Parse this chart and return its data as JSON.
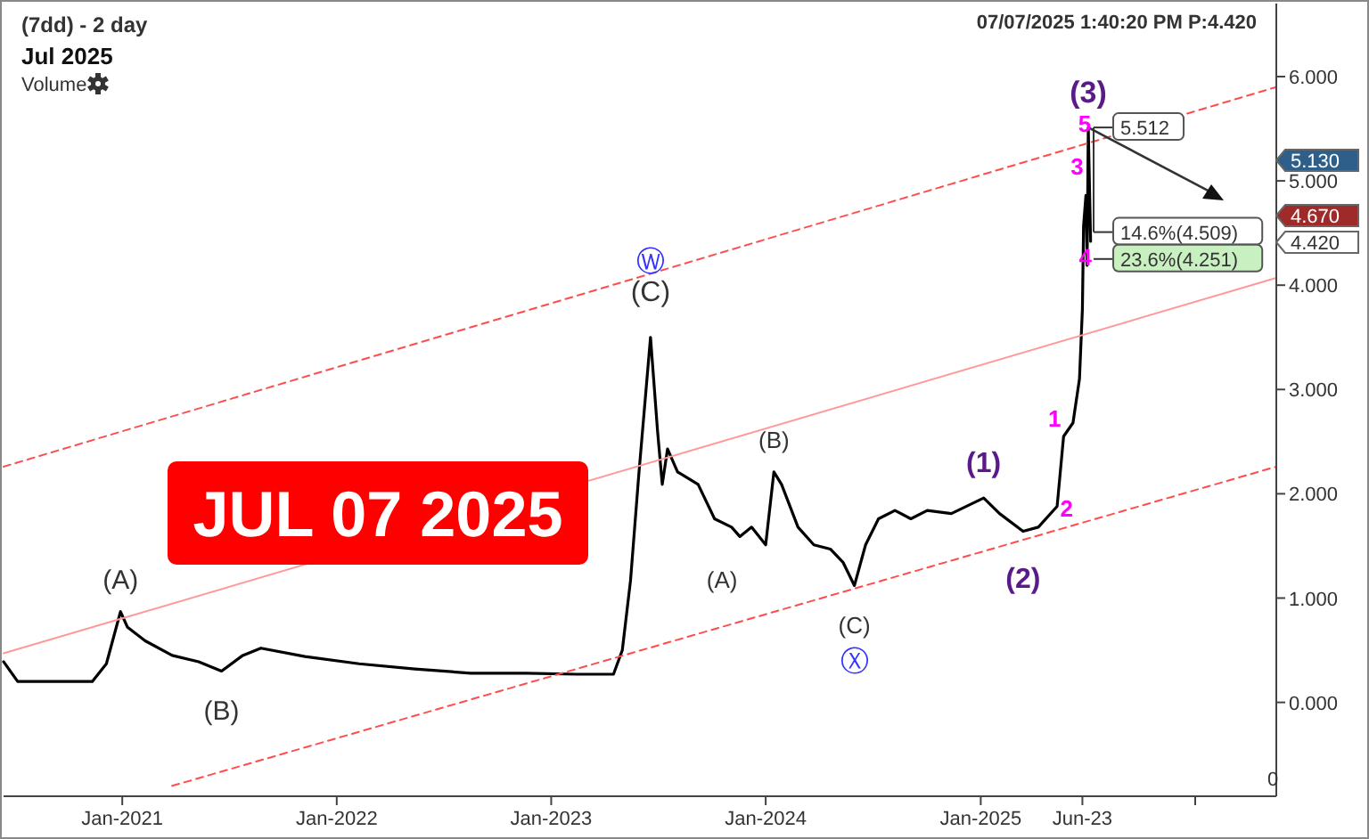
{
  "chart_data": {
    "type": "line",
    "title": "(7dd) - 2 day",
    "subtitle": "Jul 2025",
    "xlim": [
      "2020-06-13",
      "2026-05-19"
    ],
    "ylim": [
      -0.9,
      6.7
    ],
    "xticks": [
      {
        "value": "2021-01-01",
        "label": "Jan-2021"
      },
      {
        "value": "2022-01-01",
        "label": "Jan-2022"
      },
      {
        "value": "2023-01-01",
        "label": "Jan-2023"
      },
      {
        "value": "2024-01-01",
        "label": "Jan-2024"
      },
      {
        "value": "2025-01-01",
        "label": "Jan-2025"
      },
      {
        "value": "2025-06-23",
        "label": "Jun-23"
      },
      {
        "value": "2026-01-01",
        "label": null
      }
    ],
    "yticks": [
      {
        "value": 0,
        "label": "0.000"
      },
      {
        "value": 1,
        "label": "1.000"
      },
      {
        "value": 2,
        "label": "2.000"
      },
      {
        "value": 3,
        "label": "3.000"
      },
      {
        "value": 4,
        "label": "4.000"
      },
      {
        "value": 5,
        "label": "5.000"
      },
      {
        "value": 6,
        "label": "6.000"
      }
    ],
    "grid": false,
    "series": [
      {
        "color": "#000000",
        "line_style": "solid",
        "x": [
          "2020-06-13",
          "2020-07-07",
          "2020-11-11",
          "2020-12-05",
          "2020-12-29",
          "2021-01-10",
          "2021-02-09",
          "2021-03-27",
          "2021-05-11",
          "2021-06-19",
          "2021-07-25",
          "2021-08-25",
          "2021-11-08",
          "2022-02-08",
          "2022-05-14",
          "2022-08-17",
          "2022-11-20",
          "2023-02-13",
          "2023-04-17",
          "2023-05-02",
          "2023-05-16",
          "2023-05-30",
          "2023-06-19",
          "2023-07-01",
          "2023-07-09",
          "2023-07-18",
          "2023-08-04",
          "2023-09-08",
          "2023-10-06",
          "2023-11-04",
          "2023-11-18",
          "2023-12-08",
          "2024-01-01",
          "2024-01-15",
          "2024-01-28",
          "2024-02-25",
          "2024-03-23",
          "2024-04-20",
          "2024-05-12",
          "2024-05-31",
          "2024-06-19",
          "2024-07-11",
          "2024-08-08",
          "2024-09-04",
          "2024-10-02",
          "2024-11-12",
          "2025-01-06",
          "2025-02-02",
          "2025-03-14",
          "2025-04-09",
          "2025-05-11",
          "2025-05-22",
          "2025-06-07",
          "2025-06-18",
          "2025-06-23",
          "2025-06-25",
          "2025-06-29",
          "2025-07-01",
          "2025-07-03",
          "2025-07-07"
        ],
        "values": [
          0.39,
          0.2,
          0.2,
          0.37,
          0.87,
          0.72,
          0.59,
          0.45,
          0.39,
          0.3,
          0.45,
          0.52,
          0.44,
          0.37,
          0.32,
          0.28,
          0.28,
          0.27,
          0.27,
          0.5,
          1.17,
          2.18,
          3.5,
          2.6,
          2.09,
          2.43,
          2.21,
          2.09,
          1.76,
          1.68,
          1.59,
          1.68,
          1.51,
          2.21,
          2.09,
          1.68,
          1.51,
          1.47,
          1.34,
          1.12,
          1.51,
          1.76,
          1.84,
          1.76,
          1.84,
          1.81,
          1.96,
          1.81,
          1.64,
          1.68,
          1.88,
          2.55,
          2.68,
          3.1,
          3.77,
          4.57,
          4.86,
          4.19,
          5.51,
          4.42
        ]
      },
      {
        "color": "#ff4d4d",
        "line_style": "dashed",
        "x": [
          "2020-06-13",
          "2026-05-19"
        ],
        "values": [
          2.26,
          5.9
        ]
      },
      {
        "color": "#ff9999",
        "line_style": "solid",
        "x": [
          "2020-06-13",
          "2026-05-19"
        ],
        "values": [
          0.47,
          4.07
        ]
      },
      {
        "color": "#ff4d4d",
        "line_style": "dashed",
        "x": [
          "2021-03-27",
          "2026-05-19"
        ],
        "values": [
          -0.8,
          2.26
        ]
      }
    ],
    "annotations": [
      "07/07/2025 1:40:20 PM  P:4.420",
      "Volume",
      "JUL 07 2025",
      "5.130",
      "4.670",
      "4.420",
      "0",
      {
        "text": "(A)",
        "x": "2020-12-29",
        "y": 0.87
      },
      {
        "text": "(B)",
        "x": "2021-06-19",
        "y": 0.3
      },
      {
        "text": "(C)",
        "x": "2023-06-19",
        "y": 3.5
      },
      {
        "text": "Ⓦ",
        "x": "2023-06-19",
        "y": 4.15
      },
      {
        "text": "(A)",
        "x": "2023-11-18",
        "y": 1.59
      },
      {
        "text": "(B)",
        "x": "2024-01-15",
        "y": 2.21
      },
      {
        "text": "(C)",
        "x": "2024-05-31",
        "y": 1.12
      },
      {
        "text": "Ⓧ",
        "x": "2024-05-31",
        "y": 1.12
      },
      {
        "text": "(1)",
        "x": "2025-01-06",
        "y": 1.96
      },
      {
        "text": "(2)",
        "x": "2025-03-14",
        "y": 1.64
      },
      {
        "text": "1",
        "x": "2025-05-22",
        "y": 2.55
      },
      {
        "text": "2",
        "x": "2025-05-27",
        "y": 1.86
      },
      {
        "text": "3",
        "x": "2025-06-29",
        "y": 5.14
      },
      {
        "text": "4",
        "x": "2025-07-07",
        "y": 4.27
      },
      {
        "text": "5",
        "x": "2025-07-03",
        "y": 5.512
      },
      {
        "text": "(3)",
        "x": "2025-07-03",
        "y": 5.512
      },
      {
        "text": "5.512",
        "x": "2025-07-03",
        "y": 5.512
      },
      {
        "text": "14.6%(4.509)",
        "x": "2025-07-03",
        "y": 4.509
      },
      {
        "text": "23.6%(4.251)",
        "x": "2025-07-03",
        "y": 4.251
      }
    ]
  }
}
